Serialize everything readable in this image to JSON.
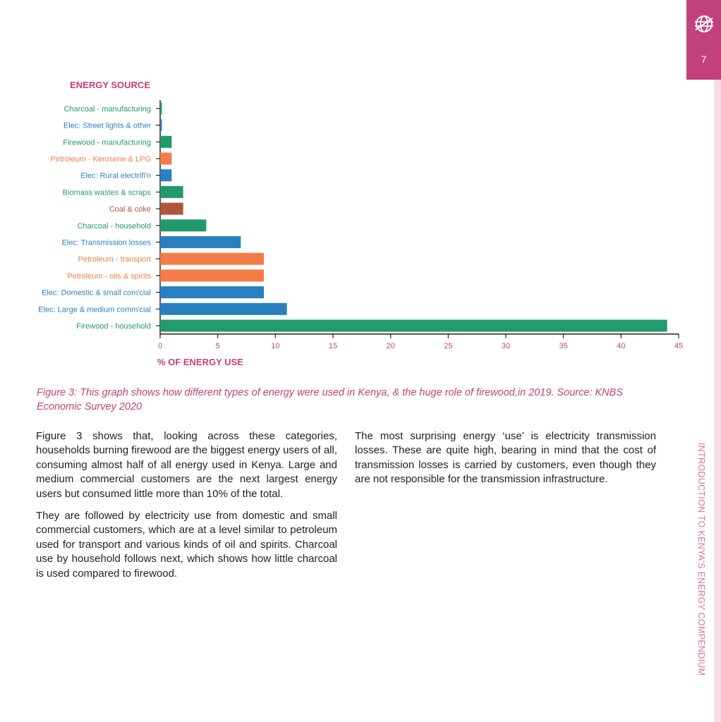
{
  "header": {
    "page_number": "7",
    "logo_icon": "globe-icon",
    "running_title": "INTRODUCTION TO KENYA'S ENERGY COMPENDIUM"
  },
  "colors": {
    "accent": "#c2417c",
    "firewood": "#229a6e",
    "electricity": "#2a7fc1",
    "petroleum": "#f47c48",
    "coal": "#b0543b"
  },
  "chart_data": {
    "type": "bar",
    "orientation": "horizontal",
    "ylabel": "ENERGY SOURCE",
    "xlabel": "% OF ENERGY USE",
    "xlim": [
      0,
      45
    ],
    "xticks": [
      0,
      5,
      10,
      15,
      20,
      25,
      30,
      35,
      40,
      45
    ],
    "grid": false,
    "categories": [
      "Charcoal - manufacturing",
      "Elec: Street lights & other",
      "Firewood - manufacturing",
      "Petroleum - Kerosene & LPG",
      "Elec: Rural electrifi'n",
      "Biomass wastes & scraps",
      "Coal & coke",
      "Charcoal - household",
      "Elec: Transmission losses",
      "Petroleum - transport",
      "Petroleum - oils & spirits",
      "Elec: Domestic & small com'cial",
      "Elec: Large & medium comm'cial",
      "Firewood - household"
    ],
    "values": [
      0.15,
      0.15,
      1,
      1,
      1,
      2,
      2,
      4,
      7,
      9,
      9,
      9,
      11,
      44
    ],
    "bar_colors": [
      "#229a6e",
      "#2a7fc1",
      "#229a6e",
      "#f47c48",
      "#2a7fc1",
      "#229a6e",
      "#b0543b",
      "#229a6e",
      "#2a7fc1",
      "#f47c48",
      "#f47c48",
      "#2a7fc1",
      "#2a7fc1",
      "#229a6e"
    ]
  },
  "caption": "Figure 3:  This graph shows how different types of energy were used in Kenya, & the huge role of firewood,in 2019. Source: KNBS Economic Survey 2020",
  "body": {
    "left_paragraphs": [
      "Figure 3 shows that, looking across these categories, households burning firewood are the biggest energy users of all, consuming almost half of all energy used in Kenya. Large and medium commercial customers are the next largest energy users but consumed little more than 10% of the total.",
      "They are followed by electricity use from domestic and small commercial customers, which are at a level similar to petroleum used for transport and various kinds of oil and spirits.  Charcoal use by household follows next, which shows how little charcoal is used compared to firewood."
    ],
    "right_paragraphs": [
      "The most surprising energy ‘use’ is electricity transmission losses.  These are quite high, bearing in mind that the cost of transmission losses is carried by customers, even though they are not responsible for the transmission infrastructure."
    ]
  }
}
